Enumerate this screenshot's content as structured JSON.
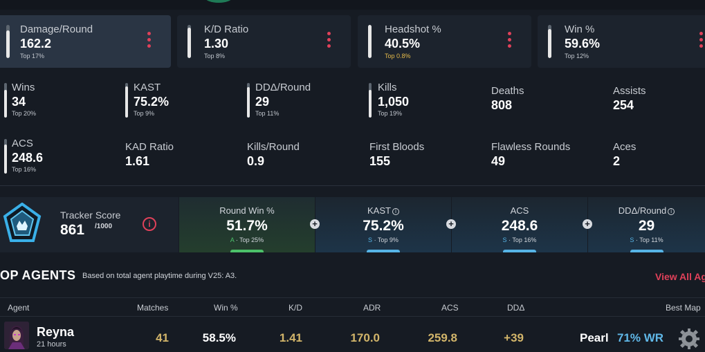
{
  "hero_stats": [
    {
      "label": "Damage/Round",
      "value": "162.2",
      "rank": "Top 17%",
      "level": 0.83
    },
    {
      "label": "K/D Ratio",
      "value": "1.30",
      "rank": "Top 8%",
      "level": 0.92
    },
    {
      "label": "Headshot %",
      "value": "40.5%",
      "rank": "Top 0.8%",
      "level": 0.99
    },
    {
      "label": "Win %",
      "value": "59.6%",
      "rank": "Top 12%",
      "level": 0.88
    }
  ],
  "stats": [
    {
      "label": "Wins",
      "value": "34",
      "rank": "Top 20%",
      "level": 0.8
    },
    {
      "label": "KAST",
      "value": "75.2%",
      "rank": "Top 9%",
      "level": 0.91
    },
    {
      "label": "DDΔ/Round",
      "value": "29",
      "rank": "Top 11%",
      "level": 0.89
    },
    {
      "label": "Kills",
      "value": "1,050",
      "rank": "Top 19%",
      "level": 0.81
    },
    {
      "label": "Deaths",
      "value": "808"
    },
    {
      "label": "Assists",
      "value": "254"
    },
    {
      "label": "ACS",
      "value": "248.6",
      "rank": "Top 16%",
      "level": 0.84
    },
    {
      "label": "KAD Ratio",
      "value": "1.61"
    },
    {
      "label": "Kills/Round",
      "value": "0.9"
    },
    {
      "label": "First Bloods",
      "value": "155"
    },
    {
      "label": "Flawless Rounds",
      "value": "49"
    },
    {
      "label": "Aces",
      "value": "2"
    }
  ],
  "tracker": {
    "label": "Tracker Score",
    "score": "861",
    "max": "/1000",
    "info_icon": "i"
  },
  "metrics": [
    {
      "label": "Round Win %",
      "value": "51.7%",
      "grade": "A",
      "rank": "Top 25%",
      "accent": "#4cc26a"
    },
    {
      "label": "KAST",
      "value": "75.2%",
      "grade": "S",
      "rank": "Top 9%",
      "accent": "#56b4e6",
      "info": "i"
    },
    {
      "label": "ACS",
      "value": "248.6",
      "grade": "S",
      "rank": "Top 16%",
      "accent": "#56b4e6"
    },
    {
      "label": "DDΔ/Round",
      "value": "29",
      "grade": "S",
      "rank": "Top 11%",
      "accent": "#56b4e6",
      "info": "i"
    }
  ],
  "plus_symbol": "+",
  "agents": {
    "title": "OP AGENTS",
    "subtitle": "Based on total agent playtime during V25: A3.",
    "view_all": "View All Ag",
    "columns": [
      "Agent",
      "Matches",
      "Win %",
      "K/D",
      "ADR",
      "ACS",
      "DDΔ",
      "Best Map"
    ],
    "rows": [
      {
        "name": "Reyna",
        "time": "21 hours",
        "matches": "41",
        "win": "58.5%",
        "kd": "1.41",
        "adr": "170.0",
        "acs": "259.8",
        "dd": "+39",
        "map": "Pearl",
        "map_wr": "71% WR"
      }
    ]
  },
  "colors": {
    "accent_red": "#e0415a",
    "gold": "#d2b56a",
    "blue": "#60b8e8"
  }
}
